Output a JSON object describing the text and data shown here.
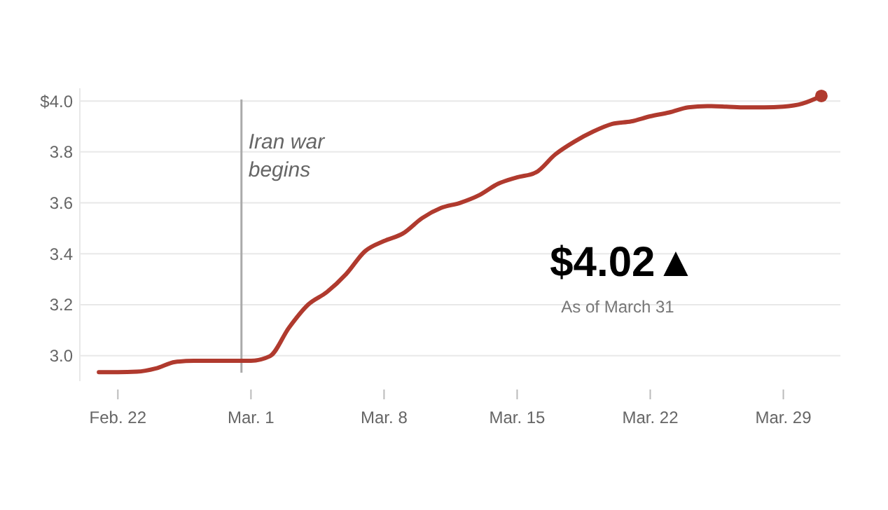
{
  "chart_data": {
    "type": "line",
    "x": [
      "--02-21",
      "--02-22",
      "--02-23",
      "--02-24",
      "--02-25",
      "--02-26",
      "--02-27",
      "--02-28",
      "--03-01",
      "--03-02",
      "--03-03",
      "--03-04",
      "--03-05",
      "--03-06",
      "--03-07",
      "--03-08",
      "--03-09",
      "--03-10",
      "--03-11",
      "--03-12",
      "--03-13",
      "--03-14",
      "--03-15",
      "--03-16",
      "--03-17",
      "--03-18",
      "--03-19",
      "--03-20",
      "--03-21",
      "--03-22",
      "--03-23",
      "--03-24",
      "--03-25",
      "--03-26",
      "--03-27",
      "--03-28",
      "--03-29",
      "--03-30",
      "--03-31"
    ],
    "series": [
      {
        "color": "#b03a2e",
        "marker": "none",
        "values": [
          2.935,
          2.935,
          2.937,
          2.95,
          2.975,
          2.98,
          2.98,
          2.98,
          2.98,
          2.998,
          3.11,
          3.2,
          3.25,
          3.32,
          3.41,
          3.45,
          3.48,
          3.54,
          3.58,
          3.6,
          3.63,
          3.675,
          3.7,
          3.72,
          3.79,
          3.84,
          3.88,
          3.91,
          3.92,
          3.94,
          3.955,
          3.975,
          3.98,
          3.978,
          3.975,
          3.975,
          3.978,
          3.99,
          4.02
        ]
      },
      {
        "type": "scatter",
        "color": "#b03a2e",
        "marker": "circle",
        "x": [
          "--03-31"
        ],
        "values": [
          4.02
        ]
      }
    ],
    "xlim": [
      "--02-20",
      "--04-01"
    ],
    "xticks": [
      {
        "value": "--02-22",
        "label": "Feb. 22"
      },
      {
        "value": "--03-01",
        "label": "Mar. 1"
      },
      {
        "value": "--03-08",
        "label": "Mar. 8"
      },
      {
        "value": "--03-15",
        "label": "Mar. 15"
      },
      {
        "value": "--03-22",
        "label": "Mar. 22"
      },
      {
        "value": "--03-29",
        "label": "Mar. 29"
      }
    ],
    "ylim": [
      2.9,
      4.05
    ],
    "yticks": [
      {
        "value": 3,
        "label": "3.0"
      },
      {
        "value": 3.2,
        "label": "3.2"
      },
      {
        "value": 3.4,
        "label": "3.4"
      },
      {
        "value": 3.6,
        "label": "3.6"
      },
      {
        "value": 3.8,
        "label": "3.8"
      },
      {
        "value": 4,
        "label": "$4.0"
      }
    ],
    "grid": "y",
    "line_style": "solid",
    "ref_lines": [
      {
        "axis": "x",
        "value": "--02-28T12:00",
        "label": "Iran war begins",
        "color": "#aaaaaa"
      }
    ],
    "annotations": [
      "$4.02▲",
      "As of March 31"
    ]
  }
}
